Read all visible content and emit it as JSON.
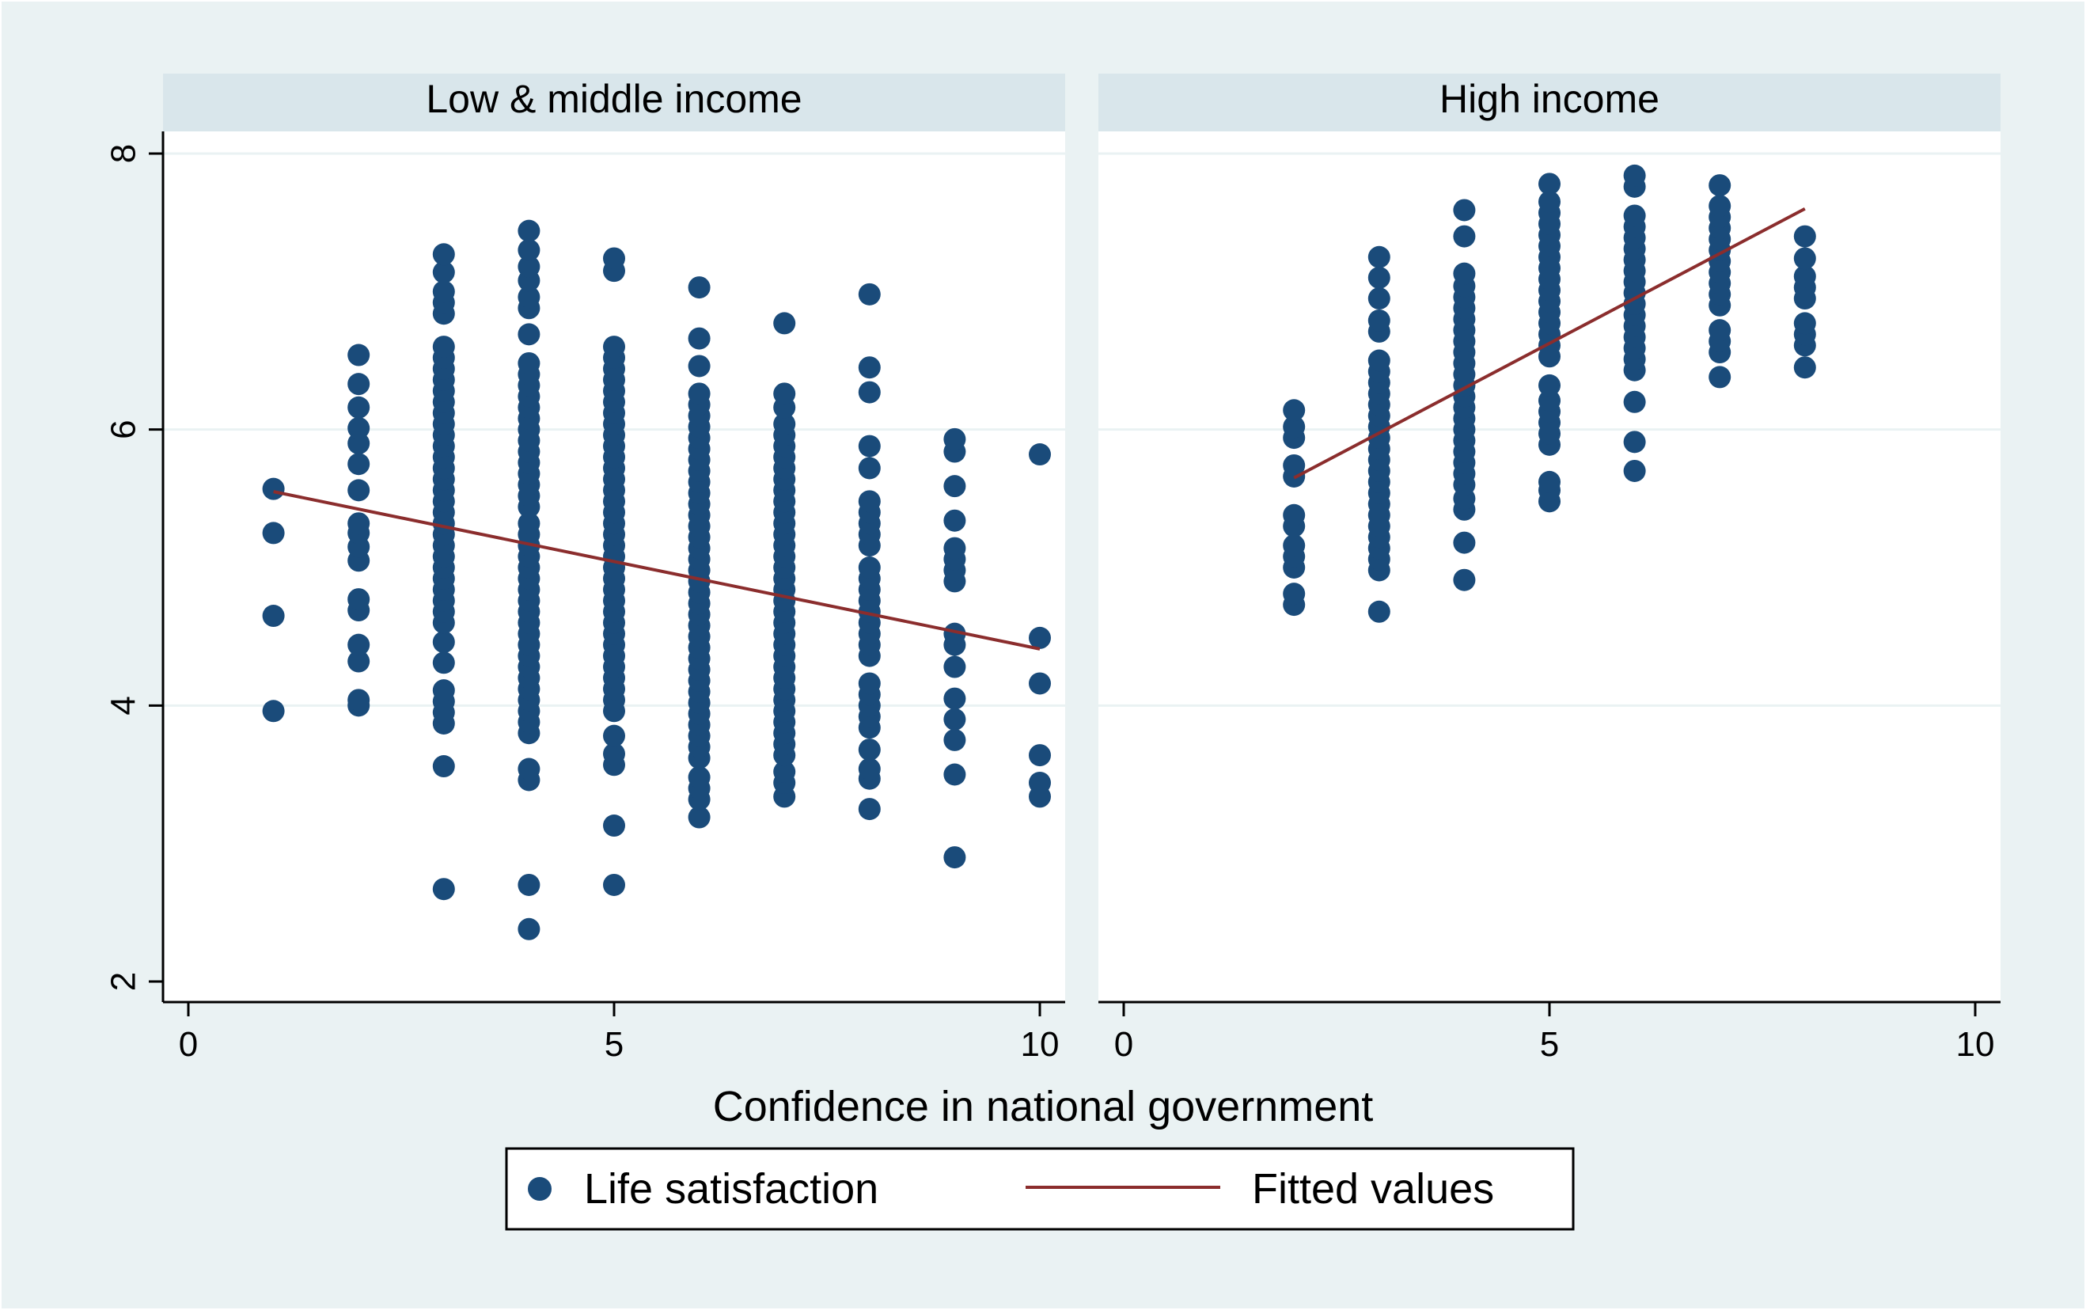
{
  "chart_data": {
    "type": "scatter",
    "xlabel": "Confidence in national government",
    "ylabel": "",
    "xlim": [
      0,
      10
    ],
    "ylim": [
      2,
      8
    ],
    "x_ticks": [
      0,
      5,
      10
    ],
    "y_ticks": [
      2,
      4,
      6,
      8
    ],
    "x_tick_labels": [
      "0",
      "5",
      "10"
    ],
    "y_tick_labels": [
      "2",
      "4",
      "6",
      "8"
    ],
    "grid": true,
    "legend": {
      "placement": "bottom-center",
      "entries": [
        {
          "label": "Life satisfaction",
          "marker": "circle",
          "color": "#1a4b7a"
        },
        {
          "label": "Fitted values",
          "marker": "line",
          "color": "#8b2d2d"
        }
      ]
    },
    "colors": {
      "background": "#eaf2f3",
      "panel": "#ffffff",
      "strip": "#d9e6eb",
      "points": "#1a4b7a",
      "fit": "#8b2d2d",
      "grid": "#eaf2f3"
    },
    "panels": [
      {
        "title": "Low & middle income",
        "columns": [
          {
            "x": 1,
            "y": [
              3.96,
              4.65,
              5.25,
              5.57
            ]
          },
          {
            "x": 2,
            "y": [
              4.0,
              4.04,
              4.32,
              4.44,
              4.69,
              4.77,
              5.05,
              5.15,
              5.25,
              5.32,
              5.56,
              5.75,
              5.9,
              6.01,
              6.16,
              6.33,
              6.54
            ]
          },
          {
            "x": 3,
            "y": [
              2.67,
              3.56,
              3.87,
              3.95,
              4.03,
              4.11,
              4.31,
              4.46,
              4.6,
              4.68,
              4.76,
              4.84,
              4.92,
              5.0,
              5.08,
              5.16,
              5.24,
              5.32,
              5.4,
              5.48,
              5.56,
              5.64,
              5.72,
              5.8,
              5.88,
              5.96,
              6.04,
              6.12,
              6.2,
              6.28,
              6.36,
              6.44,
              6.52,
              6.6,
              6.84,
              6.92,
              7.0,
              7.14,
              7.27
            ]
          },
          {
            "x": 4,
            "y": [
              2.38,
              2.7,
              3.46,
              3.54,
              3.8,
              3.88,
              3.96,
              4.04,
              4.12,
              4.2,
              4.28,
              4.36,
              4.44,
              4.52,
              4.6,
              4.68,
              4.76,
              4.84,
              4.92,
              5.0,
              5.08,
              5.16,
              5.24,
              5.32,
              5.44,
              5.52,
              5.6,
              5.68,
              5.76,
              5.84,
              5.92,
              6.0,
              6.08,
              6.16,
              6.24,
              6.32,
              6.4,
              6.48,
              6.69,
              6.88,
              6.96,
              7.08,
              7.18,
              7.3,
              7.44
            ]
          },
          {
            "x": 5,
            "y": [
              2.7,
              3.13,
              3.57,
              3.65,
              3.78,
              3.96,
              4.04,
              4.12,
              4.2,
              4.28,
              4.36,
              4.44,
              4.52,
              4.6,
              4.68,
              4.76,
              4.84,
              4.92,
              5.0,
              5.08,
              5.16,
              5.24,
              5.32,
              5.4,
              5.48,
              5.56,
              5.64,
              5.72,
              5.8,
              5.88,
              5.96,
              6.04,
              6.12,
              6.2,
              6.28,
              6.36,
              6.44,
              6.52,
              6.6,
              7.15,
              7.24
            ]
          },
          {
            "x": 6,
            "y": [
              3.19,
              3.32,
              3.4,
              3.48,
              3.62,
              3.7,
              3.78,
              3.86,
              3.94,
              4.02,
              4.1,
              4.18,
              4.26,
              4.34,
              4.42,
              4.5,
              4.58,
              4.66,
              4.74,
              4.82,
              4.9,
              4.98,
              5.06,
              5.14,
              5.22,
              5.3,
              5.38,
              5.46,
              5.54,
              5.62,
              5.7,
              5.78,
              5.86,
              5.94,
              6.02,
              6.1,
              6.18,
              6.26,
              6.46,
              6.66,
              7.03
            ]
          },
          {
            "x": 7,
            "y": [
              3.34,
              3.44,
              3.52,
              3.64,
              3.72,
              3.8,
              3.88,
              3.96,
              4.04,
              4.12,
              4.2,
              4.28,
              4.36,
              4.44,
              4.52,
              4.6,
              4.68,
              4.76,
              4.84,
              4.92,
              5.0,
              5.08,
              5.16,
              5.24,
              5.32,
              5.4,
              5.48,
              5.56,
              5.64,
              5.72,
              5.8,
              5.88,
              5.96,
              6.04,
              6.16,
              6.26,
              6.77
            ]
          },
          {
            "x": 8,
            "y": [
              3.25,
              3.47,
              3.54,
              3.68,
              3.84,
              3.92,
              4.0,
              4.08,
              4.16,
              4.36,
              4.44,
              4.52,
              4.6,
              4.68,
              4.76,
              4.84,
              4.92,
              5.0,
              5.16,
              5.24,
              5.32,
              5.4,
              5.48,
              5.72,
              5.88,
              6.27,
              6.45,
              6.98
            ]
          },
          {
            "x": 9,
            "y": [
              2.9,
              3.5,
              3.75,
              3.9,
              4.05,
              4.28,
              4.44,
              4.52,
              4.9,
              4.98,
              5.06,
              5.14,
              5.34,
              5.59,
              5.84,
              5.93
            ]
          },
          {
            "x": 10,
            "y": [
              3.34,
              3.44,
              3.64,
              4.16,
              4.49,
              5.82
            ]
          }
        ],
        "fit": {
          "x": [
            1,
            10
          ],
          "y": [
            5.55,
            4.41
          ]
        }
      },
      {
        "title": "High income",
        "columns": [
          {
            "x": 2,
            "y": [
              4.73,
              4.81,
              5.0,
              5.08,
              5.16,
              5.3,
              5.38,
              5.66,
              5.74,
              5.94,
              6.02,
              6.14
            ]
          },
          {
            "x": 3,
            "y": [
              4.68,
              4.98,
              5.06,
              5.14,
              5.22,
              5.3,
              5.38,
              5.46,
              5.54,
              5.62,
              5.7,
              5.78,
              5.86,
              5.94,
              6.02,
              6.1,
              6.18,
              6.26,
              6.34,
              6.42,
              6.5,
              6.71,
              6.79,
              6.95,
              7.1,
              7.25
            ]
          },
          {
            "x": 4,
            "y": [
              4.91,
              5.18,
              5.42,
              5.5,
              5.6,
              5.68,
              5.76,
              5.84,
              5.92,
              6.0,
              6.08,
              6.16,
              6.24,
              6.32,
              6.4,
              6.48,
              6.56,
              6.64,
              6.72,
              6.8,
              6.88,
              6.96,
              7.04,
              7.13,
              7.4,
              7.59
            ]
          },
          {
            "x": 5,
            "y": [
              5.48,
              5.56,
              5.62,
              5.89,
              5.97,
              6.05,
              6.13,
              6.21,
              6.32,
              6.53,
              6.61,
              6.69,
              6.77,
              6.85,
              6.93,
              7.01,
              7.09,
              7.17,
              7.25,
              7.33,
              7.41,
              7.49,
              7.57,
              7.65,
              7.78
            ]
          },
          {
            "x": 6,
            "y": [
              5.7,
              5.91,
              6.2,
              6.43,
              6.51,
              6.59,
              6.67,
              6.75,
              6.83,
              6.91,
              6.99,
              7.07,
              7.15,
              7.23,
              7.31,
              7.39,
              7.47,
              7.55,
              7.76,
              7.84
            ]
          },
          {
            "x": 7,
            "y": [
              6.38,
              6.56,
              6.64,
              6.72,
              6.9,
              6.98,
              7.06,
              7.14,
              7.22,
              7.3,
              7.38,
              7.46,
              7.54,
              7.62,
              7.77
            ]
          },
          {
            "x": 8,
            "y": [
              6.45,
              6.61,
              6.69,
              6.77,
              6.95,
              7.03,
              7.11,
              7.24,
              7.4
            ]
          }
        ],
        "fit": {
          "x": [
            2,
            8
          ],
          "y": [
            5.65,
            7.6
          ]
        }
      }
    ]
  }
}
